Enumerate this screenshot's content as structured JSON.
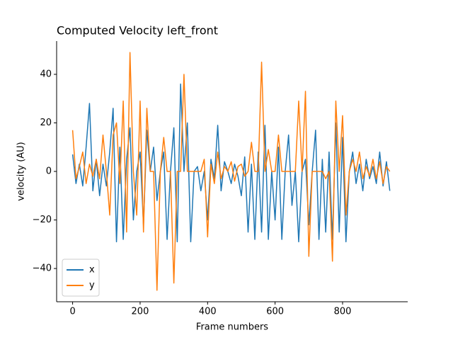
{
  "chart_data": {
    "type": "line",
    "title": "Computed Velocity left_front",
    "xlabel": "Frame numbers",
    "ylabel": "velocity (AU)",
    "x": [
      0,
      10,
      20,
      30,
      40,
      50,
      60,
      70,
      80,
      90,
      100,
      110,
      120,
      130,
      140,
      150,
      160,
      170,
      180,
      190,
      200,
      210,
      220,
      230,
      240,
      250,
      260,
      270,
      280,
      290,
      300,
      310,
      320,
      330,
      340,
      350,
      360,
      370,
      380,
      390,
      400,
      410,
      420,
      430,
      440,
      450,
      460,
      470,
      480,
      490,
      500,
      510,
      520,
      530,
      540,
      550,
      560,
      570,
      580,
      590,
      600,
      610,
      620,
      630,
      640,
      650,
      660,
      670,
      680,
      690,
      700,
      710,
      720,
      730,
      740,
      750,
      760,
      770,
      780,
      790,
      800,
      810,
      820,
      830,
      840,
      850,
      860,
      870,
      880,
      890,
      900,
      910,
      920,
      930,
      940
    ],
    "series": [
      {
        "name": "x",
        "color": "#1f77b4",
        "values": [
          7,
          -5,
          3,
          -6,
          10,
          28,
          -8,
          5,
          -10,
          3,
          -6,
          8,
          26,
          -29,
          10,
          -28,
          5,
          18,
          -20,
          0,
          8,
          -22,
          17,
          0,
          10,
          -12,
          0,
          8,
          -28,
          0,
          18,
          -29,
          36,
          0,
          20,
          -29,
          0,
          2,
          -8,
          0,
          -20,
          5,
          -3,
          19,
          -8,
          4,
          0,
          -5,
          3,
          -2,
          -10,
          6,
          -25,
          3,
          -28,
          8,
          -25,
          19,
          -28,
          0,
          -20,
          10,
          -28,
          0,
          15,
          -14,
          0,
          -29,
          0,
          5,
          -22,
          0,
          17,
          -28,
          5,
          -25,
          8,
          -28,
          20,
          -25,
          14,
          -29,
          0,
          8,
          -5,
          3,
          -8,
          5,
          -3,
          2,
          -5,
          8,
          -6,
          4,
          -8
        ]
      },
      {
        "name": "y",
        "color": "#ff7f0e",
        "values": [
          17,
          -3,
          2,
          8,
          -5,
          3,
          -2,
          5,
          -3,
          15,
          0,
          -18,
          15,
          20,
          -5,
          29,
          -25,
          49,
          0,
          -18,
          29,
          -25,
          26,
          0,
          0,
          -49,
          0,
          14,
          0,
          0,
          -46,
          0,
          0,
          40,
          0,
          0,
          0,
          0,
          0,
          5,
          -27,
          3,
          -5,
          8,
          -3,
          2,
          0,
          4,
          -4,
          2,
          3,
          -2,
          0,
          12,
          0,
          0,
          45,
          0,
          9,
          0,
          0,
          15,
          0,
          0,
          0,
          0,
          0,
          29,
          0,
          33,
          -35,
          0,
          0,
          0,
          0,
          -3,
          0,
          -37,
          29,
          0,
          23,
          -18,
          0,
          5,
          0,
          8,
          -3,
          2,
          -2,
          5,
          -3,
          4,
          -5,
          2,
          0
        ]
      }
    ],
    "xlim": [
      -47.4,
      993
    ],
    "ylim": [
      -53.7,
      53.7
    ],
    "xticks": [
      0,
      200,
      400,
      600,
      800
    ],
    "yticks": [
      {
        "value": -40,
        "label": "−40"
      },
      {
        "value": -20,
        "label": "−20"
      },
      0,
      20,
      40
    ],
    "legend": "lower left",
    "grid": false
  }
}
